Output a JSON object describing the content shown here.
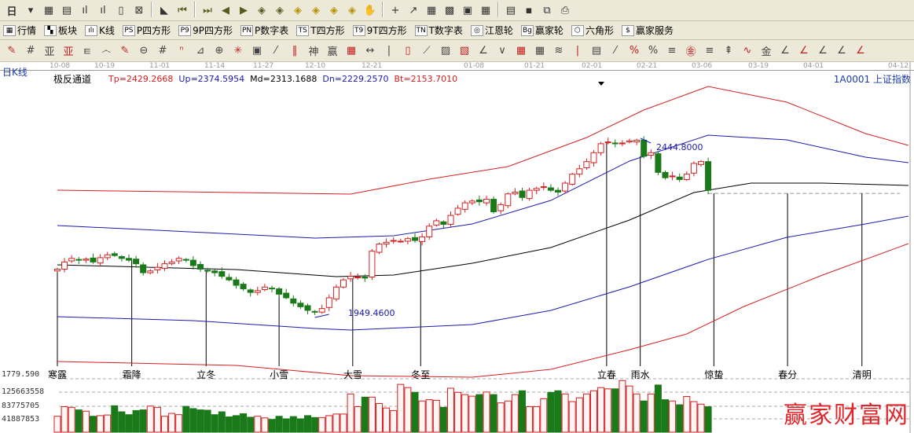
{
  "toolbar1": {
    "period_label": "日",
    "icons": [
      "period-dropdown-icon",
      "chart-icon",
      "calendar-icon",
      "bar-3-icon",
      "bar-9-icon",
      "candle-dropdown-icon",
      "eraser-icon",
      "flag-icon",
      "first-icon",
      "last-icon",
      "left-icon",
      "right-icon",
      "arrow-left-diamond-icon",
      "arrow-right-diamond-icon",
      "arrow-h-diamond-icon",
      "arrow-in-diamond-icon",
      "arrow-v-diamond-icon",
      "arrow-all-diamond-icon",
      "hand-icon",
      "crosshair-icon",
      "line-icon",
      "grid-icon",
      "pattern-icon",
      "calendar-21-icon",
      "calculator-icon",
      "notes-icon",
      "save-icon",
      "network-icon",
      "print-icon"
    ]
  },
  "toolbar2": {
    "items": [
      {
        "icon": "▦",
        "label": "行情"
      },
      {
        "icon": "▚",
        "label": "板块"
      },
      {
        "icon": "ılı",
        "label": "K线"
      },
      {
        "icon": "PS",
        "label": "P四方形"
      },
      {
        "icon": "P9",
        "label": "9P四方形"
      },
      {
        "icon": "PN",
        "label": "P数字表"
      },
      {
        "icon": "TS",
        "label": "T四方形"
      },
      {
        "icon": "T9",
        "label": "9T四方形"
      },
      {
        "icon": "TN",
        "label": "T数字表"
      },
      {
        "icon": "◎",
        "label": "江恩轮"
      },
      {
        "icon": "Bg",
        "label": "赢家轮"
      },
      {
        "icon": "⬡",
        "label": "六角形"
      },
      {
        "icon": "$",
        "label": "赢家服务"
      }
    ]
  },
  "toolbar3": {
    "count": 46
  },
  "axis": {
    "dates": [
      "10-08",
      "10-19",
      "11-01",
      "11-14",
      "11-27",
      "12-10",
      "12-21",
      "01-08",
      "01-21",
      "02-01",
      "02-21",
      "03-06",
      "03-19",
      "04-01",
      "04-12"
    ]
  },
  "header": {
    "period": "日K线",
    "indicator": "极反通道",
    "tp": "Tp=2429.2668",
    "up": "Up=2374.5954",
    "md": "Md=2313.1688",
    "dn": "Dn=2229.2570",
    "bt": "Bt=2153.7010",
    "symbol": "1A0001  上证指数"
  },
  "chart_data": {
    "type": "candlestick",
    "ylim": [
      1779.59,
      2620
    ],
    "annotations": {
      "high": "2444.8000",
      "low": "1949.4600",
      "bottom_price": "1779.590"
    },
    "closes": [
      2080,
      2100,
      2110,
      2105,
      2108,
      2100,
      2112,
      2120,
      2118,
      2110,
      2105,
      2095,
      2070,
      2075,
      2085,
      2095,
      2100,
      2110,
      2105,
      2090,
      2080,
      2075,
      2070,
      2060,
      2050,
      2035,
      2025,
      2015,
      2020,
      2030,
      2025,
      2010,
      2000,
      1985,
      1975,
      1965,
      1960,
      1970,
      2000,
      2030,
      2050,
      2060,
      2058,
      2055,
      2130,
      2150,
      2155,
      2160,
      2158,
      2165,
      2160,
      2170,
      2200,
      2215,
      2205,
      2230,
      2250,
      2265,
      2270,
      2268,
      2275,
      2240,
      2260,
      2290,
      2295,
      2280,
      2300,
      2305,
      2310,
      2300,
      2295,
      2320,
      2345,
      2360,
      2380,
      2405,
      2430,
      2435,
      2430,
      2432,
      2438,
      2440,
      2395,
      2405,
      2350,
      2335,
      2340,
      2330,
      2345,
      2375,
      2380,
      2300
    ],
    "volumes": [
      50,
      80,
      78,
      70,
      66,
      50,
      52,
      54,
      83,
      64,
      55,
      68,
      70,
      82,
      78,
      50,
      59,
      55,
      81,
      74,
      70,
      69,
      55,
      64,
      48,
      52,
      58,
      47,
      50,
      45,
      40,
      50,
      42,
      49,
      42,
      52,
      46,
      46,
      52,
      57,
      57,
      120,
      80,
      110,
      110,
      90,
      76,
      68,
      150,
      140,
      125,
      98,
      102,
      100,
      78,
      138,
      125,
      118,
      113,
      118,
      126,
      118,
      92,
      98,
      118,
      130,
      80,
      80,
      105,
      125,
      130,
      120,
      96,
      108,
      120,
      130,
      140,
      136,
      136,
      162,
      145,
      120,
      98,
      120,
      148,
      102,
      98,
      86,
      112,
      96,
      88,
      80
    ],
    "volume_ticks": [
      "125663558",
      "83775705",
      "41887853"
    ],
    "bands": [
      {
        "color": "#d42020",
        "points": [
          [
            0,
            2300.3
          ],
          [
            25,
            2293.8
          ],
          [
            41,
            2289.4
          ],
          [
            52,
            2331.0
          ],
          [
            63,
            2366.1
          ],
          [
            74,
            2447.3
          ],
          [
            82,
            2524.0
          ],
          [
            91,
            2589.8
          ],
          [
            102,
            2546.0
          ],
          [
            113,
            2458.2
          ],
          [
            119,
            2425.4
          ]
        ]
      },
      {
        "color": "#1a1ab0",
        "points": [
          [
            0,
            2201.7
          ],
          [
            14,
            2188.5
          ],
          [
            36,
            2166.6
          ],
          [
            47,
            2173.1
          ],
          [
            58,
            2206.0
          ],
          [
            69,
            2271.8
          ],
          [
            80,
            2381.5
          ],
          [
            91,
            2453.9
          ],
          [
            102,
            2440.7
          ],
          [
            113,
            2392.4
          ],
          [
            119,
            2377.1
          ]
        ]
      },
      {
        "color": "#000000",
        "points": [
          [
            0,
            2092.0
          ],
          [
            25,
            2078.8
          ],
          [
            39,
            2059.1
          ],
          [
            47,
            2063.5
          ],
          [
            58,
            2096.4
          ],
          [
            69,
            2140.3
          ],
          [
            80,
            2217.0
          ],
          [
            89,
            2293.8
          ],
          [
            97,
            2320.1
          ],
          [
            107,
            2320.1
          ],
          [
            119,
            2313.5
          ]
        ]
      },
      {
        "color": "#1a1ab0",
        "points": [
          [
            0,
            1947.3
          ],
          [
            19,
            1936.3
          ],
          [
            36,
            1914.4
          ],
          [
            41,
            1910.0
          ],
          [
            58,
            1925.3
          ],
          [
            69,
            1964.8
          ],
          [
            80,
            2030.6
          ],
          [
            91,
            2107.2
          ],
          [
            102,
            2168.8
          ],
          [
            113,
            2206.0
          ],
          [
            119,
            2228.0
          ]
        ]
      },
      {
        "color": "#d42020",
        "points": [
          [
            0,
            1822.3
          ],
          [
            25,
            1811.3
          ],
          [
            41,
            1782.8
          ],
          [
            58,
            1778.4
          ],
          [
            69,
            1800.3
          ],
          [
            80,
            1855.2
          ],
          [
            88,
            1899.0
          ],
          [
            96,
            1975.8
          ],
          [
            107,
            2063.5
          ],
          [
            119,
            2151.2
          ]
        ]
      }
    ],
    "solar_terms": [
      {
        "label": "寒露",
        "index": 0
      },
      {
        "label": "霜降",
        "index": 10.4
      },
      {
        "label": "立冬",
        "index": 20.8
      },
      {
        "label": "小雪",
        "index": 31
      },
      {
        "label": "大雪",
        "index": 41.3
      },
      {
        "label": "冬至",
        "index": 50.8
      },
      {
        "label": "立春",
        "index": 76.8
      },
      {
        "label": "雨水",
        "index": 81.5
      },
      {
        "label": "惊蛰",
        "index": 91.8
      },
      {
        "label": "春分",
        "index": 102.1
      },
      {
        "label": "清明",
        "index": 112.5
      }
    ],
    "colors": {
      "up": "#d42020",
      "down": "#1a7a1a"
    }
  },
  "watermark": "赢家财富网"
}
